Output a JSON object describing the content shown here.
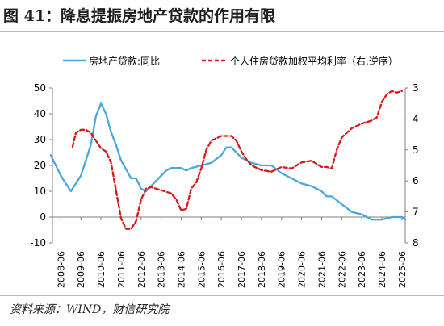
{
  "figure": {
    "title": "图 41：降息提振房地产贷款的作用有限",
    "source": "资料来源：WIND，财信研究院"
  },
  "chart_data": {
    "type": "line",
    "legend_position": "top",
    "grid": false,
    "x_ticks": [
      "2008-06",
      "2009-06",
      "2010-06",
      "2011-06",
      "2012-06",
      "2013-06",
      "2014-06",
      "2015-06",
      "2016-06",
      "2017-06",
      "2018-06",
      "2019-06",
      "2020-06",
      "2021-06",
      "2022-06",
      "2023-06",
      "2024-06",
      "2025-06"
    ],
    "x_range": [
      "2008-01",
      "2025-08"
    ],
    "y_left": {
      "min": -10,
      "max": 50,
      "ticks": [
        50,
        40,
        30,
        20,
        10,
        0,
        -10
      ]
    },
    "y_right": {
      "min": 3,
      "max": 8,
      "inverted": true,
      "ticks": [
        3,
        4,
        5,
        6,
        7,
        8
      ]
    },
    "series": [
      {
        "name": "房地产贷款:同比",
        "axis": "left",
        "color": "#4aa8d8",
        "style": "solid",
        "points": [
          [
            "2007-12",
            24
          ],
          [
            "2008-06",
            16
          ],
          [
            "2008-12",
            10
          ],
          [
            "2009-06",
            16
          ],
          [
            "2009-12",
            28
          ],
          [
            "2010-03",
            39
          ],
          [
            "2010-06",
            44
          ],
          [
            "2010-09",
            40
          ],
          [
            "2010-12",
            33
          ],
          [
            "2011-03",
            28
          ],
          [
            "2011-06",
            22
          ],
          [
            "2011-12",
            15
          ],
          [
            "2012-03",
            15
          ],
          [
            "2012-06",
            11
          ],
          [
            "2012-09",
            10
          ],
          [
            "2012-12",
            12
          ],
          [
            "2013-06",
            16
          ],
          [
            "2013-09",
            18
          ],
          [
            "2013-12",
            19
          ],
          [
            "2014-06",
            19
          ],
          [
            "2014-09",
            18
          ],
          [
            "2014-12",
            19
          ],
          [
            "2015-06",
            20
          ],
          [
            "2015-12",
            21
          ],
          [
            "2016-06",
            24
          ],
          [
            "2016-09",
            27
          ],
          [
            "2016-12",
            27
          ],
          [
            "2017-06",
            23
          ],
          [
            "2017-12",
            21
          ],
          [
            "2018-06",
            20
          ],
          [
            "2018-12",
            20
          ],
          [
            "2019-06",
            17
          ],
          [
            "2019-12",
            15
          ],
          [
            "2020-06",
            13
          ],
          [
            "2020-12",
            12
          ],
          [
            "2021-06",
            10
          ],
          [
            "2021-09",
            8
          ],
          [
            "2021-12",
            8
          ],
          [
            "2022-06",
            5
          ],
          [
            "2022-12",
            2
          ],
          [
            "2023-06",
            1
          ],
          [
            "2023-12",
            -1
          ],
          [
            "2024-06",
            -1
          ],
          [
            "2024-12",
            0
          ],
          [
            "2025-06",
            0
          ],
          [
            "2025-08",
            -1
          ]
        ]
      },
      {
        "name": "个人住房贷款加权平均利率（右,逆序）",
        "axis": "right",
        "color": "#d61a1a",
        "style": "dashed",
        "points": [
          [
            "2009-01",
            4.9
          ],
          [
            "2009-03",
            4.45
          ],
          [
            "2009-06",
            4.35
          ],
          [
            "2009-09",
            4.35
          ],
          [
            "2009-12",
            4.45
          ],
          [
            "2010-03",
            4.7
          ],
          [
            "2010-06",
            4.95
          ],
          [
            "2010-09",
            5.05
          ],
          [
            "2010-12",
            5.4
          ],
          [
            "2011-03",
            6.3
          ],
          [
            "2011-06",
            7.2
          ],
          [
            "2011-09",
            7.55
          ],
          [
            "2011-12",
            7.55
          ],
          [
            "2012-03",
            7.3
          ],
          [
            "2012-06",
            6.6
          ],
          [
            "2012-09",
            6.25
          ],
          [
            "2012-12",
            6.2
          ],
          [
            "2013-06",
            6.3
          ],
          [
            "2013-12",
            6.4
          ],
          [
            "2014-03",
            6.6
          ],
          [
            "2014-06",
            6.95
          ],
          [
            "2014-09",
            6.9
          ],
          [
            "2014-12",
            6.25
          ],
          [
            "2015-03",
            6.05
          ],
          [
            "2015-06",
            5.6
          ],
          [
            "2015-09",
            5.0
          ],
          [
            "2015-12",
            4.7
          ],
          [
            "2016-06",
            4.55
          ],
          [
            "2016-12",
            4.55
          ],
          [
            "2017-03",
            4.7
          ],
          [
            "2017-06",
            5.05
          ],
          [
            "2017-09",
            5.3
          ],
          [
            "2017-12",
            5.5
          ],
          [
            "2018-06",
            5.65
          ],
          [
            "2018-12",
            5.7
          ],
          [
            "2019-06",
            5.55
          ],
          [
            "2019-12",
            5.6
          ],
          [
            "2020-06",
            5.4
          ],
          [
            "2020-12",
            5.35
          ],
          [
            "2021-03",
            5.45
          ],
          [
            "2021-06",
            5.55
          ],
          [
            "2021-09",
            5.55
          ],
          [
            "2021-12",
            5.6
          ],
          [
            "2022-03",
            5.0
          ],
          [
            "2022-06",
            4.6
          ],
          [
            "2022-12",
            4.3
          ],
          [
            "2023-06",
            4.15
          ],
          [
            "2023-12",
            4.05
          ],
          [
            "2024-03",
            3.95
          ],
          [
            "2024-06",
            3.45
          ],
          [
            "2024-09",
            3.2
          ],
          [
            "2024-12",
            3.1
          ],
          [
            "2025-03",
            3.15
          ],
          [
            "2025-06",
            3.1
          ]
        ]
      }
    ]
  }
}
